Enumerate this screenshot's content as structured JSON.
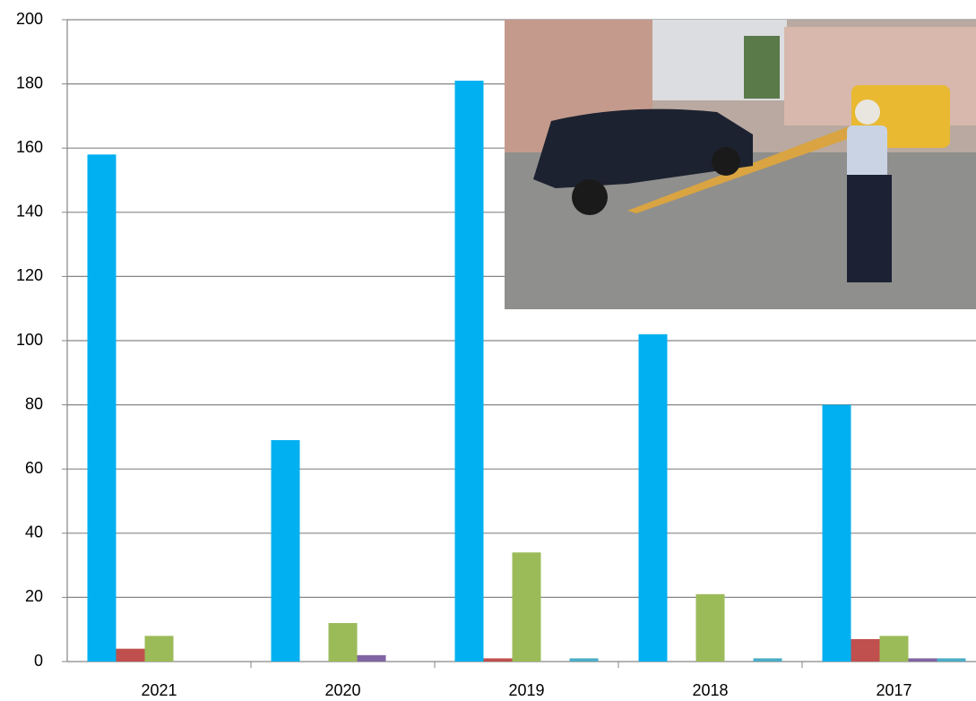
{
  "chart_data": {
    "type": "bar",
    "categories": [
      "2021",
      "2020",
      "2019",
      "2018",
      "2017"
    ],
    "series": [
      {
        "color": "#00b0f0",
        "values": [
          158,
          69,
          181,
          102,
          80
        ]
      },
      {
        "color": "#c0504d",
        "values": [
          4,
          0,
          1,
          0,
          7
        ]
      },
      {
        "color": "#9bbb59",
        "values": [
          8,
          12,
          34,
          21,
          8
        ]
      },
      {
        "color": "#8064a2",
        "values": [
          0,
          2,
          0,
          0,
          1
        ]
      },
      {
        "color": "#4bacc6",
        "values": [
          0,
          0,
          1,
          1,
          1
        ]
      }
    ],
    "ylim": [
      0,
      200
    ],
    "yticks": [
      0,
      20,
      40,
      60,
      80,
      100,
      120,
      140,
      160,
      180,
      200
    ],
    "grid": true
  }
}
